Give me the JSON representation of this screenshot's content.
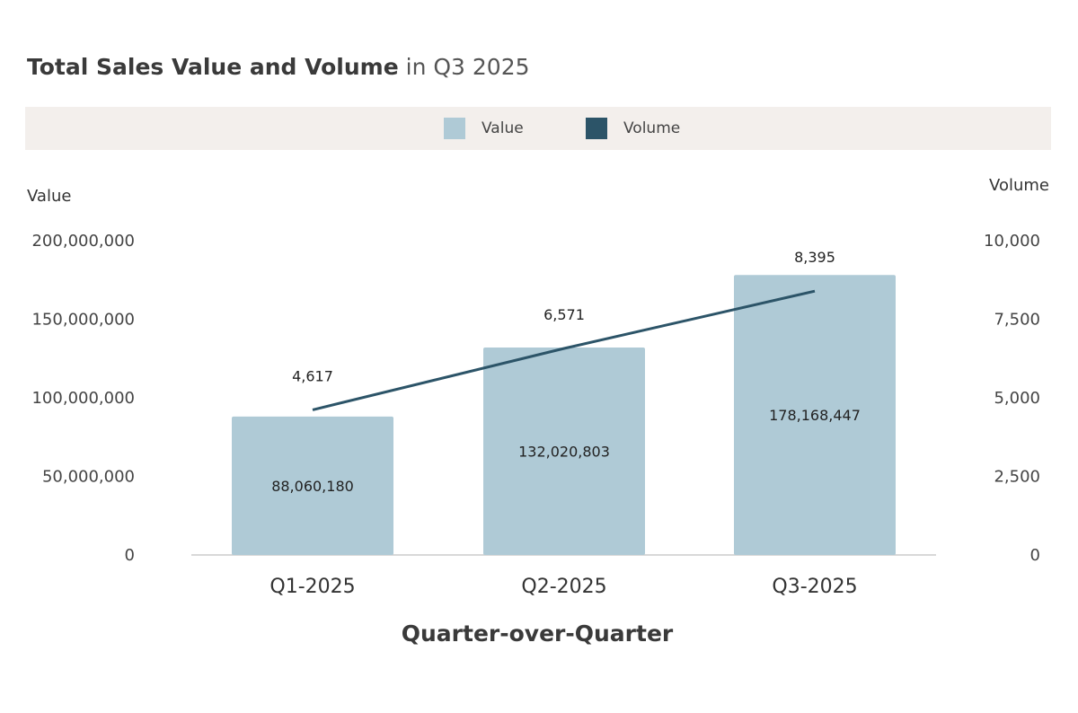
{
  "title": {
    "bold": "Total Sales Value and Volume",
    "light": " in Q3 2025"
  },
  "legend": [
    {
      "label": "Value",
      "color": "#afcad6"
    },
    {
      "label": "Volume",
      "color": "#2c5468"
    }
  ],
  "chart_data": {
    "type": "bar",
    "title": "Total Sales Value and Volume in Q3 2025",
    "xlabel": "Quarter-over-Quarter",
    "ylabel": "Value",
    "y2label": "Volume",
    "categories": [
      "Q1-2025",
      "Q2-2025",
      "Q3-2025"
    ],
    "ylim": [
      0,
      200000000
    ],
    "y2lim": [
      0,
      10000
    ],
    "yticks": [
      "0",
      "50,000,000",
      "100,000,000",
      "150,000,000",
      "200,000,000"
    ],
    "y2ticks": [
      "0",
      "2,500",
      "5,000",
      "7,500",
      "10,000"
    ],
    "yticks_values": [
      0,
      50000000,
      100000000,
      150000000,
      200000000
    ],
    "y2ticks_values": [
      0,
      2500,
      5000,
      7500,
      10000
    ],
    "legend_position": "top-center",
    "grid": false,
    "series": [
      {
        "name": "Value",
        "type": "bar",
        "axis": "left",
        "color": "#afcad6",
        "values": [
          88060180,
          132020803,
          178168447
        ],
        "labels": [
          "88,060,180",
          "132,020,803",
          "178,168,447"
        ]
      },
      {
        "name": "Volume",
        "type": "line",
        "axis": "right",
        "color": "#2c5468",
        "values": [
          4617,
          6571,
          8395
        ],
        "labels": [
          "4,617",
          "6,571",
          "8,395"
        ]
      }
    ]
  }
}
